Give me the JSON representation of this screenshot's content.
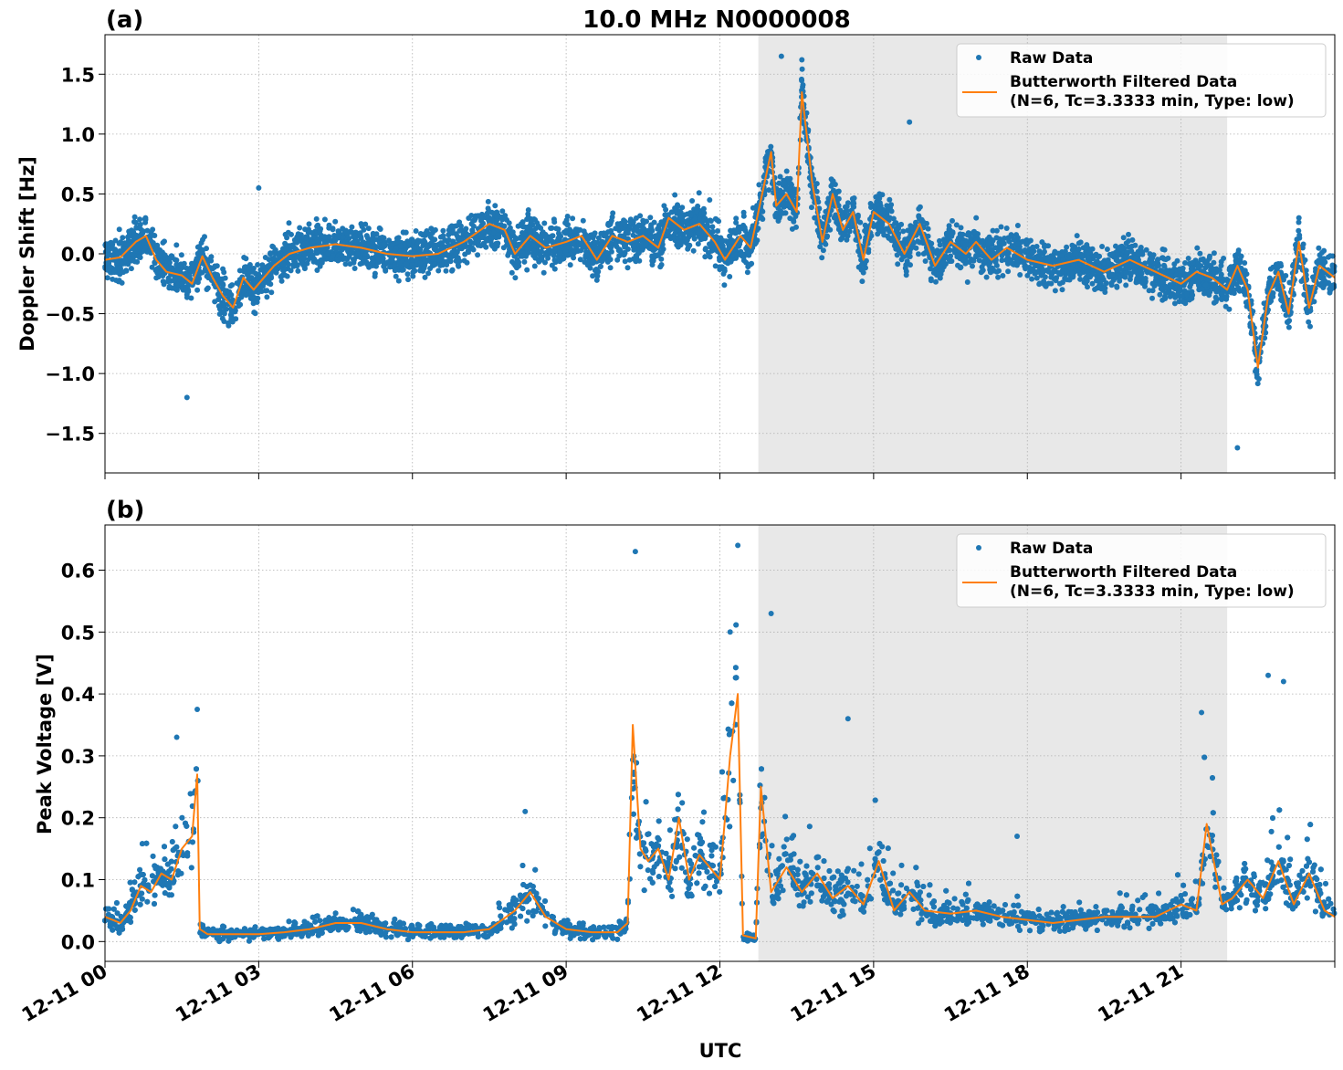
{
  "chart_data": {
    "title": "10.0 MHz N0000008",
    "xlabel": "UTC",
    "x_ticks": [
      "12-11 00",
      "12-11 03",
      "12-11 06",
      "12-11 09",
      "12-11 12",
      "12-11 15",
      "12-11 18",
      "12-11 21"
    ],
    "x_range_hours": [
      0,
      24
    ],
    "shaded_span_hours": [
      12.75,
      21.9
    ],
    "colors": {
      "raw": "#1f77b4",
      "filtered": "#ff7f0e",
      "shade": "#e8e8e8"
    },
    "legend": {
      "raw": "Raw Data",
      "filtered_line1": "Butterworth Filtered Data",
      "filtered_line2": "(N=6, Tc=3.3333 min, Type: low)",
      "placement": "upper right"
    },
    "panels": [
      {
        "label": "(a)",
        "type": "scatter+line",
        "ylabel": "Doppler Shift [Hz]",
        "ylim": [
          -1.83,
          1.83
        ],
        "yticks": [
          1.5,
          1.0,
          0.5,
          0.0,
          -0.5,
          -1.0,
          -1.5
        ],
        "ytick_labels": [
          "1.5",
          "1.0",
          "0.5",
          "0.0",
          "−0.5",
          "−1.0",
          "−1.5"
        ],
        "filtered_x": [
          0,
          0.3,
          0.6,
          0.8,
          1.0,
          1.2,
          1.5,
          1.7,
          1.9,
          2.1,
          2.3,
          2.5,
          2.7,
          2.9,
          3.1,
          3.3,
          3.6,
          4.0,
          4.5,
          5.0,
          5.5,
          6.0,
          6.5,
          7.0,
          7.5,
          7.8,
          8.0,
          8.3,
          8.6,
          9.0,
          9.3,
          9.6,
          9.9,
          10.2,
          10.5,
          10.8,
          11.0,
          11.3,
          11.6,
          11.9,
          12.1,
          12.4,
          12.6,
          12.8,
          13.0,
          13.1,
          13.3,
          13.5,
          13.6,
          13.8,
          14.0,
          14.2,
          14.4,
          14.6,
          14.8,
          15.0,
          15.3,
          15.6,
          15.9,
          16.2,
          16.5,
          16.8,
          17.0,
          17.3,
          17.6,
          18.0,
          18.5,
          19.0,
          19.5,
          20.0,
          20.5,
          21.0,
          21.3,
          21.6,
          21.9,
          22.1,
          22.3,
          22.5,
          22.7,
          22.9,
          23.1,
          23.3,
          23.5,
          23.7,
          24.0
        ],
        "filtered_y": [
          -0.05,
          -0.03,
          0.1,
          0.15,
          -0.05,
          -0.15,
          -0.18,
          -0.25,
          -0.02,
          -0.2,
          -0.35,
          -0.45,
          -0.2,
          -0.3,
          -0.2,
          -0.1,
          0.0,
          0.05,
          0.08,
          0.05,
          0.0,
          -0.02,
          0.0,
          0.1,
          0.25,
          0.2,
          0.0,
          0.15,
          0.05,
          0.1,
          0.15,
          -0.05,
          0.15,
          0.1,
          0.15,
          0.05,
          0.3,
          0.2,
          0.25,
          0.1,
          -0.05,
          0.15,
          0.05,
          0.45,
          0.85,
          0.4,
          0.5,
          0.35,
          1.35,
          0.6,
          0.1,
          0.5,
          0.2,
          0.35,
          -0.05,
          0.35,
          0.25,
          0.0,
          0.25,
          -0.1,
          0.1,
          0.0,
          0.1,
          -0.05,
          0.05,
          -0.05,
          -0.1,
          -0.05,
          -0.15,
          -0.05,
          -0.15,
          -0.25,
          -0.15,
          -0.2,
          -0.3,
          -0.1,
          -0.3,
          -0.95,
          -0.35,
          -0.15,
          -0.5,
          0.1,
          -0.45,
          -0.1,
          -0.2
        ],
        "raw_band": 0.27,
        "raw_outliers": [
          [
            3.0,
            0.55
          ],
          [
            1.6,
            -1.2
          ],
          [
            13.2,
            1.65
          ],
          [
            13.6,
            1.62
          ],
          [
            15.7,
            1.1
          ],
          [
            22.1,
            -1.62
          ],
          [
            23.3,
            0.3
          ],
          [
            11.8,
            0.45
          ]
        ]
      },
      {
        "label": "(b)",
        "type": "scatter+line",
        "ylabel": "Peak Voltage [V]",
        "ylim": [
          -0.032,
          0.673
        ],
        "yticks": [
          0.6,
          0.5,
          0.4,
          0.3,
          0.2,
          0.1,
          0.0
        ],
        "ytick_labels": [
          "0.6",
          "0.5",
          "0.4",
          "0.3",
          "0.2",
          "0.1",
          "0.0"
        ],
        "filtered_x": [
          0,
          0.3,
          0.5,
          0.7,
          0.9,
          1.1,
          1.3,
          1.5,
          1.7,
          1.8,
          1.85,
          2.0,
          2.5,
          3.0,
          3.5,
          4.0,
          4.5,
          5.0,
          5.5,
          6.0,
          6.5,
          7.0,
          7.5,
          8.0,
          8.3,
          8.6,
          9.0,
          9.5,
          10.0,
          10.2,
          10.3,
          10.45,
          10.6,
          10.8,
          11.0,
          11.2,
          11.4,
          11.6,
          11.8,
          12.0,
          12.2,
          12.35,
          12.45,
          12.7,
          12.8,
          13.0,
          13.3,
          13.6,
          13.9,
          14.2,
          14.5,
          14.8,
          15.1,
          15.4,
          15.7,
          16.0,
          16.5,
          17.0,
          17.5,
          18.0,
          18.5,
          19.0,
          19.5,
          20.0,
          20.5,
          21.0,
          21.3,
          21.5,
          21.8,
          22.0,
          22.3,
          22.6,
          22.9,
          23.2,
          23.5,
          23.8,
          24.0
        ],
        "filtered_y": [
          0.04,
          0.03,
          0.05,
          0.09,
          0.08,
          0.11,
          0.1,
          0.15,
          0.17,
          0.27,
          0.02,
          0.012,
          0.012,
          0.012,
          0.015,
          0.02,
          0.03,
          0.03,
          0.02,
          0.015,
          0.015,
          0.015,
          0.02,
          0.05,
          0.08,
          0.04,
          0.02,
          0.015,
          0.015,
          0.03,
          0.35,
          0.15,
          0.13,
          0.15,
          0.1,
          0.2,
          0.1,
          0.14,
          0.12,
          0.1,
          0.3,
          0.4,
          0.01,
          0.005,
          0.25,
          0.08,
          0.12,
          0.08,
          0.11,
          0.07,
          0.09,
          0.06,
          0.13,
          0.05,
          0.08,
          0.05,
          0.045,
          0.05,
          0.04,
          0.035,
          0.03,
          0.035,
          0.04,
          0.04,
          0.04,
          0.06,
          0.05,
          0.19,
          0.06,
          0.07,
          0.1,
          0.07,
          0.13,
          0.06,
          0.11,
          0.05,
          0.04
        ],
        "raw_band_frac": 0.45,
        "raw_outliers": [
          [
            10.35,
            0.63
          ],
          [
            12.35,
            0.64
          ],
          [
            13.0,
            0.53
          ],
          [
            12.2,
            0.5
          ],
          [
            1.8,
            0.375
          ],
          [
            1.4,
            0.33
          ],
          [
            8.2,
            0.21
          ],
          [
            14.5,
            0.36
          ],
          [
            22.7,
            0.43
          ],
          [
            23.0,
            0.42
          ],
          [
            21.4,
            0.37
          ],
          [
            17.8,
            0.17
          ]
        ]
      }
    ]
  }
}
